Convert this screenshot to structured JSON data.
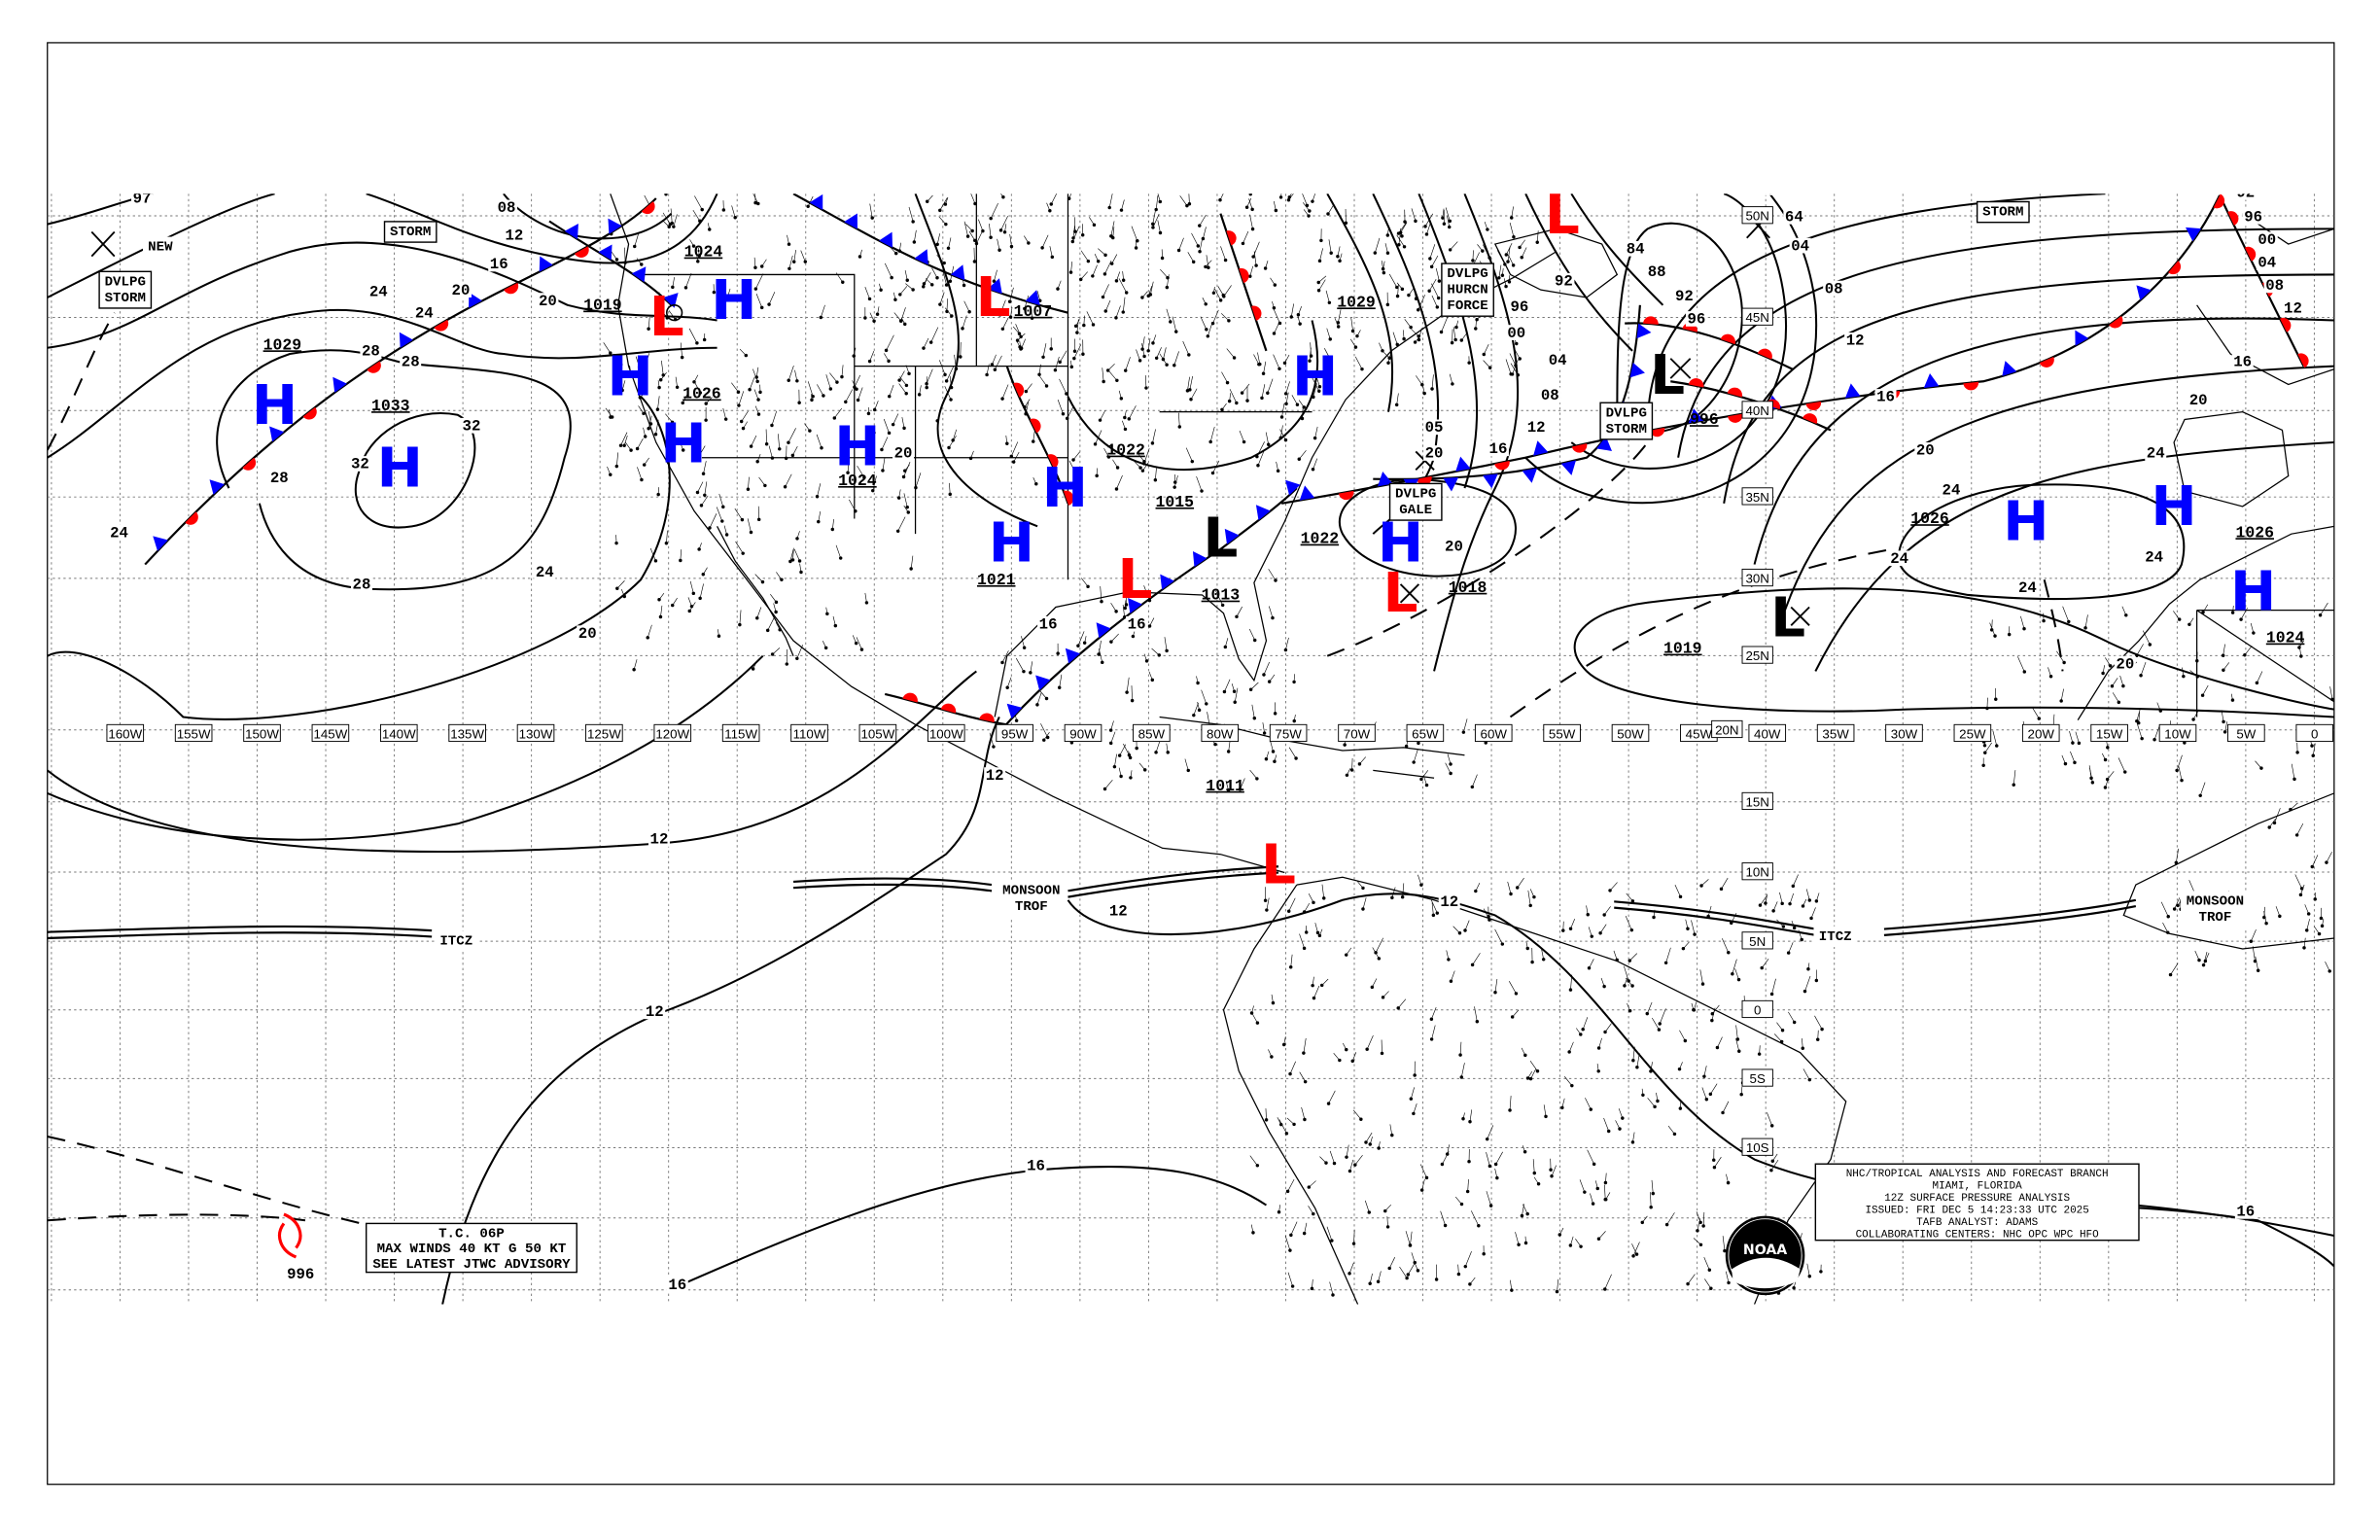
{
  "title_block": {
    "lines": [
      "NHC/TROPICAL ANALYSIS AND FORECAST BRANCH",
      "MIAMI, FLORIDA",
      "12Z SURFACE PRESSURE ANALYSIS",
      "ISSUED: FRI DEC 5 14:23:33 UTC 2025",
      "TAFB ANALYST: ADAMS",
      "COLLABORATING CENTERS: NHC OPC WPC HFO"
    ]
  },
  "tc_advisory": {
    "lines": [
      "T.C. 06P",
      "MAX WINDS 40 KT G 50 KT",
      "SEE LATEST JTWC ADVISORY"
    ],
    "pressure": "996"
  },
  "logo": {
    "text": "NOAA"
  },
  "longitude_labels": [
    "160W",
    "155W",
    "150W",
    "145W",
    "140W",
    "135W",
    "130W",
    "125W",
    "120W",
    "115W",
    "110W",
    "105W",
    "100W",
    "95W",
    "90W",
    "85W",
    "80W",
    "75W",
    "70W",
    "65W",
    "60W",
    "55W",
    "50W",
    "45W",
    "40W",
    "35W",
    "30W",
    "25W",
    "20W",
    "15W",
    "10W",
    "5W",
    "0"
  ],
  "latitude_labels": [
    "50N",
    "45N",
    "40N",
    "35N",
    "30N",
    "25N",
    "20N",
    "15N",
    "10N",
    "5N",
    "0",
    "5S",
    "10S"
  ],
  "pressure_centers": [
    {
      "type": "H",
      "pressure": "1029"
    },
    {
      "type": "H",
      "pressure": "1033"
    },
    {
      "type": "H",
      "pressure": ""
    },
    {
      "type": "L",
      "pressure": "1019"
    },
    {
      "type": "H",
      "pressure": "1024"
    },
    {
      "type": "H",
      "pressure": "1026"
    },
    {
      "type": "H",
      "pressure": "1024"
    },
    {
      "type": "L",
      "pressure": "1007"
    },
    {
      "type": "H",
      "pressure": "1022"
    },
    {
      "type": "H",
      "pressure": "1021"
    },
    {
      "type": "H",
      "pressure": "1029"
    },
    {
      "type": "H",
      "pressure": "1022"
    },
    {
      "type": "L",
      "pressure": "1015"
    },
    {
      "type": "L",
      "pressure": "1013"
    },
    {
      "type": "L",
      "pressure": "1018"
    },
    {
      "type": "L",
      "pressure": "1011"
    },
    {
      "type": "L",
      "pressure": ""
    },
    {
      "type": "L",
      "pressure": "996"
    },
    {
      "type": "L",
      "pressure": "1019"
    },
    {
      "type": "H",
      "pressure": "1026"
    },
    {
      "type": "H",
      "pressure": "1026"
    },
    {
      "type": "H",
      "pressure": "1024"
    }
  ],
  "isobar_labels": [
    "97",
    "08",
    "12",
    "16",
    "20",
    "24",
    "20",
    "24",
    "28",
    "28",
    "32",
    "32",
    "28",
    "24",
    "28",
    "24",
    "20",
    "12",
    "12",
    "16",
    "16",
    "12",
    "12",
    "12",
    "16",
    "16",
    "20",
    "05",
    "16",
    "12",
    "08",
    "04",
    "00",
    "96",
    "92",
    "84",
    "88",
    "92",
    "96",
    "00",
    "64",
    "04",
    "08",
    "12",
    "16",
    "20",
    "24",
    "24",
    "24",
    "24",
    "24",
    "20",
    "20",
    "16",
    "12",
    "08",
    "04",
    "00",
    "96",
    "92",
    "20",
    "20",
    "16"
  ],
  "feature_labels": [
    {
      "text": "STORM",
      "boxed": true
    },
    {
      "text": "DVLPG\nSTORM",
      "boxed": true
    },
    {
      "text": "NEW",
      "boxed": false
    },
    {
      "text": "DVLPG\nHURCN\nFORCE",
      "boxed": true
    },
    {
      "text": "DVLPG\nSTORM",
      "boxed": true
    },
    {
      "text": "DVLPG\nGALE",
      "boxed": true
    },
    {
      "text": "STORM",
      "boxed": true
    },
    {
      "text": "MONSOON\nTROF",
      "boxed": false
    },
    {
      "text": "ITCZ",
      "boxed": false
    },
    {
      "text": "ITCZ",
      "boxed": false
    },
    {
      "text": "MONSOON\nTROF",
      "boxed": false
    }
  ],
  "colors": {
    "high": "#0000ff",
    "low": "#ff0000",
    "low_black": "#000000",
    "cold_front": "#0000ff",
    "warm_front": "#ff0000",
    "occluded_front": "#9933ff"
  }
}
